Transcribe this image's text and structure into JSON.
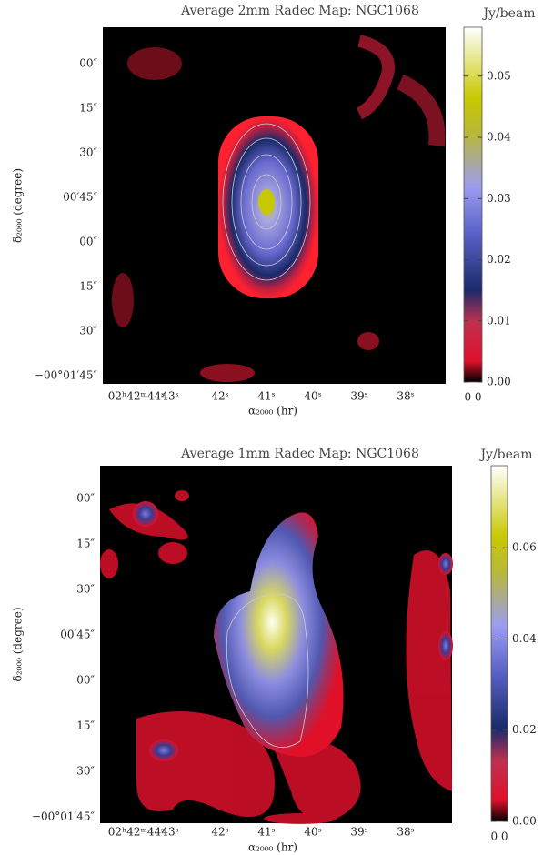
{
  "chart_data": [
    {
      "type": "heatmap",
      "title": "Average 2mm Radec Map: NGC1068",
      "colorbar_label": "Jy/beam",
      "xlabel": "α₂₀₀₀ (hr)",
      "ylabel": "δ₂₀₀₀ (degree)",
      "xtick_labels": [
        "02ʰ42ᵐ44ˢ",
        "43ˢ",
        "42ˢ",
        "41ˢ",
        "40ˢ",
        "39ˢ",
        "38ˢ"
      ],
      "ytick_labels": [
        "00″",
        "15″",
        "30″",
        "00′45″",
        "00″",
        "15″",
        "30″",
        "−00°01′45″"
      ],
      "colorbar_lim": [
        0,
        0.058
      ],
      "colorbar_ticks": [
        {
          "value": 0,
          "label": "0.00"
        },
        {
          "value": 0.01,
          "label": "0.01"
        },
        {
          "value": 0.02,
          "label": "0.02"
        },
        {
          "value": 0.03,
          "label": "0.03"
        },
        {
          "value": 0.04,
          "label": "0.04"
        },
        {
          "value": 0.05,
          "label": "0.05"
        }
      ],
      "colorbar_bottom_text": "0 0"
    },
    {
      "type": "heatmap",
      "title": "Average 1mm Radec Map: NGC1068",
      "colorbar_label": "Jy/beam",
      "xlabel": "α₂₀₀₀ (hr)",
      "ylabel": "δ₂₀₀₀ (degree)",
      "xtick_labels": [
        "02ʰ42ᵐ44ˢ",
        "43ˢ",
        "42ˢ",
        "41ˢ",
        "40ˢ",
        "39ˢ",
        "38ˢ"
      ],
      "ytick_labels": [
        "00″",
        "15″",
        "30″",
        "00′45″",
        "00″",
        "15″",
        "30″",
        "−00°01′45″"
      ],
      "colorbar_lim": [
        0,
        0.078
      ],
      "colorbar_ticks": [
        {
          "value": 0,
          "label": "0.00"
        },
        {
          "value": 0.02,
          "label": "0.02"
        },
        {
          "value": 0.04,
          "label": "0.04"
        },
        {
          "value": 0.06,
          "label": "0.06"
        }
      ],
      "colorbar_bottom_text": "0 0"
    }
  ]
}
